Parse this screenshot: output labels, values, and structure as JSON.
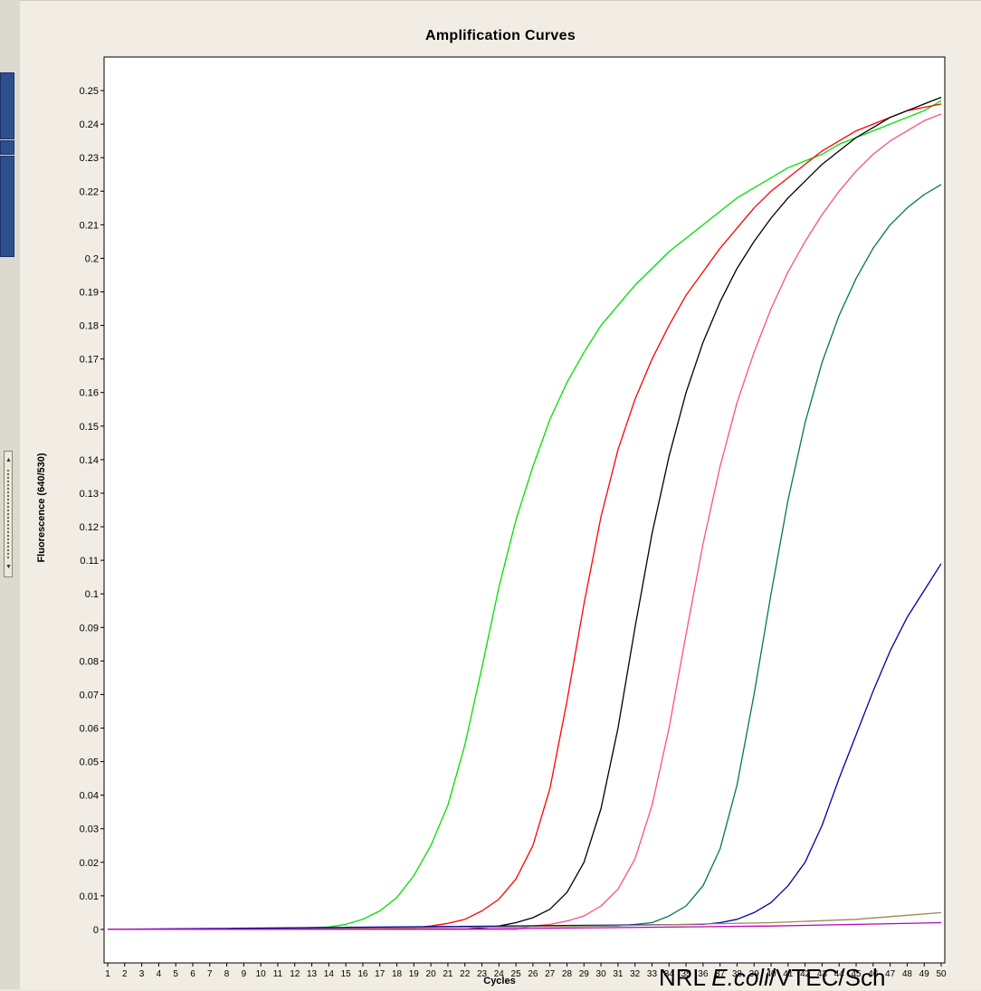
{
  "chart_data": {
    "type": "line",
    "title": "Amplification Curves",
    "xlabel": "Cycles",
    "ylabel": "Fluorescence (640/530)",
    "xlim": [
      1,
      50
    ],
    "ylim": [
      -0.01,
      0.26
    ],
    "x_ticks": [
      1,
      2,
      3,
      4,
      5,
      6,
      7,
      8,
      9,
      10,
      11,
      12,
      13,
      14,
      15,
      16,
      17,
      18,
      19,
      20,
      21,
      22,
      23,
      24,
      25,
      26,
      27,
      28,
      29,
      30,
      31,
      32,
      33,
      34,
      35,
      36,
      37,
      38,
      39,
      40,
      41,
      42,
      43,
      44,
      45,
      46,
      47,
      48,
      49,
      50
    ],
    "y_ticks": [
      0,
      0.01,
      0.02,
      0.03,
      0.04,
      0.05,
      0.06,
      0.07,
      0.08,
      0.09,
      0.1,
      0.11,
      0.12,
      0.13,
      0.14,
      0.15,
      0.16,
      0.17,
      0.18,
      0.19,
      0.2,
      0.21,
      0.22,
      0.23,
      0.24,
      0.25
    ],
    "y_tick_labels": [
      "0",
      "0.01",
      "0.02",
      "0.03",
      "0.04",
      "0.05",
      "0.06",
      "0.07",
      "0.08",
      "0.09",
      "0.1",
      "0.11",
      "0.12",
      "0.13",
      "0.14",
      "0.15",
      "0.16",
      "0.17",
      "0.18",
      "0.19",
      "0.2",
      "0.21",
      "0.22",
      "0.23",
      "0.24",
      "0.25"
    ],
    "grid": false,
    "legend": "none",
    "series": [
      {
        "color": "#00e000",
        "x": [
          1,
          10,
          14,
          15,
          16,
          17,
          18,
          19,
          20,
          21,
          22,
          23,
          24,
          25,
          26,
          27,
          28,
          29,
          30,
          31,
          32,
          33,
          34,
          35,
          36,
          37,
          38,
          39,
          40,
          41,
          42,
          43,
          44,
          45,
          46,
          47,
          48,
          49,
          50
        ],
        "y": [
          0,
          0,
          0.0007,
          0.0015,
          0.003,
          0.0055,
          0.0095,
          0.016,
          0.025,
          0.037,
          0.055,
          0.078,
          0.102,
          0.122,
          0.138,
          0.152,
          0.163,
          0.172,
          0.18,
          0.186,
          0.192,
          0.197,
          0.202,
          0.206,
          0.21,
          0.214,
          0.218,
          0.221,
          0.224,
          0.227,
          0.229,
          0.231,
          0.234,
          0.236,
          0.238,
          0.24,
          0.242,
          0.244,
          0.247
        ]
      },
      {
        "color": "#ff0000",
        "x": [
          1,
          18,
          19,
          20,
          21,
          22,
          23,
          24,
          25,
          26,
          27,
          28,
          29,
          30,
          31,
          32,
          33,
          34,
          35,
          36,
          37,
          38,
          39,
          40,
          41,
          42,
          43,
          44,
          45,
          46,
          47,
          48,
          49,
          50
        ],
        "y": [
          0,
          0,
          0.0005,
          0.001,
          0.0018,
          0.003,
          0.0055,
          0.009,
          0.015,
          0.025,
          0.042,
          0.068,
          0.097,
          0.123,
          0.143,
          0.158,
          0.17,
          0.18,
          0.189,
          0.196,
          0.203,
          0.209,
          0.215,
          0.22,
          0.224,
          0.228,
          0.232,
          0.235,
          0.238,
          0.24,
          0.242,
          0.244,
          0.245,
          0.246
        ]
      },
      {
        "color": "#000000",
        "x": [
          1,
          22,
          23,
          24,
          25,
          26,
          27,
          28,
          29,
          30,
          31,
          32,
          33,
          34,
          35,
          36,
          37,
          38,
          39,
          40,
          41,
          42,
          43,
          44,
          45,
          46,
          47,
          48,
          49,
          50
        ],
        "y": [
          0,
          0,
          0.0005,
          0.001,
          0.002,
          0.0035,
          0.006,
          0.011,
          0.02,
          0.036,
          0.06,
          0.09,
          0.118,
          0.141,
          0.16,
          0.175,
          0.187,
          0.197,
          0.205,
          0.212,
          0.218,
          0.223,
          0.228,
          0.232,
          0.236,
          0.239,
          0.242,
          0.244,
          0.246,
          0.248
        ]
      },
      {
        "color": "#ff4d88",
        "x": [
          1,
          25,
          26,
          27,
          28,
          29,
          30,
          31,
          32,
          33,
          34,
          35,
          36,
          37,
          38,
          39,
          40,
          41,
          42,
          43,
          44,
          45,
          46,
          47,
          48,
          49,
          50
        ],
        "y": [
          0,
          0,
          0.001,
          0.0015,
          0.0025,
          0.004,
          0.007,
          0.012,
          0.021,
          0.037,
          0.06,
          0.088,
          0.115,
          0.138,
          0.157,
          0.172,
          0.185,
          0.196,
          0.205,
          0.213,
          0.22,
          0.226,
          0.231,
          0.235,
          0.238,
          0.241,
          0.243
        ]
      },
      {
        "color": "#007a4d",
        "x": [
          1,
          31,
          32,
          33,
          34,
          35,
          36,
          37,
          38,
          39,
          40,
          41,
          42,
          43,
          44,
          45,
          46,
          47,
          48,
          49,
          50
        ],
        "y": [
          0,
          0.001,
          0.0015,
          0.002,
          0.004,
          0.007,
          0.013,
          0.024,
          0.043,
          0.07,
          0.1,
          0.128,
          0.151,
          0.169,
          0.183,
          0.194,
          0.203,
          0.21,
          0.215,
          0.219,
          0.222
        ]
      },
      {
        "color": "#0000a0",
        "x": [
          1,
          36,
          37,
          38,
          39,
          40,
          41,
          42,
          43,
          44,
          45,
          46,
          47,
          48,
          49,
          50
        ],
        "y": [
          0,
          0.0015,
          0.002,
          0.003,
          0.005,
          0.008,
          0.013,
          0.02,
          0.031,
          0.045,
          0.058,
          0.071,
          0.083,
          0.093,
          0.101,
          0.109
        ]
      },
      {
        "color": "#9a8a50",
        "x": [
          1,
          10,
          20,
          30,
          40,
          45,
          50
        ],
        "y": [
          0,
          0,
          0.0005,
          0.001,
          0.002,
          0.003,
          0.005
        ]
      },
      {
        "color": "#c000c0",
        "x": [
          1,
          10,
          20,
          30,
          40,
          45,
          50
        ],
        "y": [
          0,
          0,
          0,
          0.0005,
          0.001,
          0.0015,
          0.002
        ]
      }
    ]
  },
  "watermark": {
    "prefix": "NRL ",
    "italic": "E.coli",
    "suffix": "/VTEC/Sch"
  }
}
